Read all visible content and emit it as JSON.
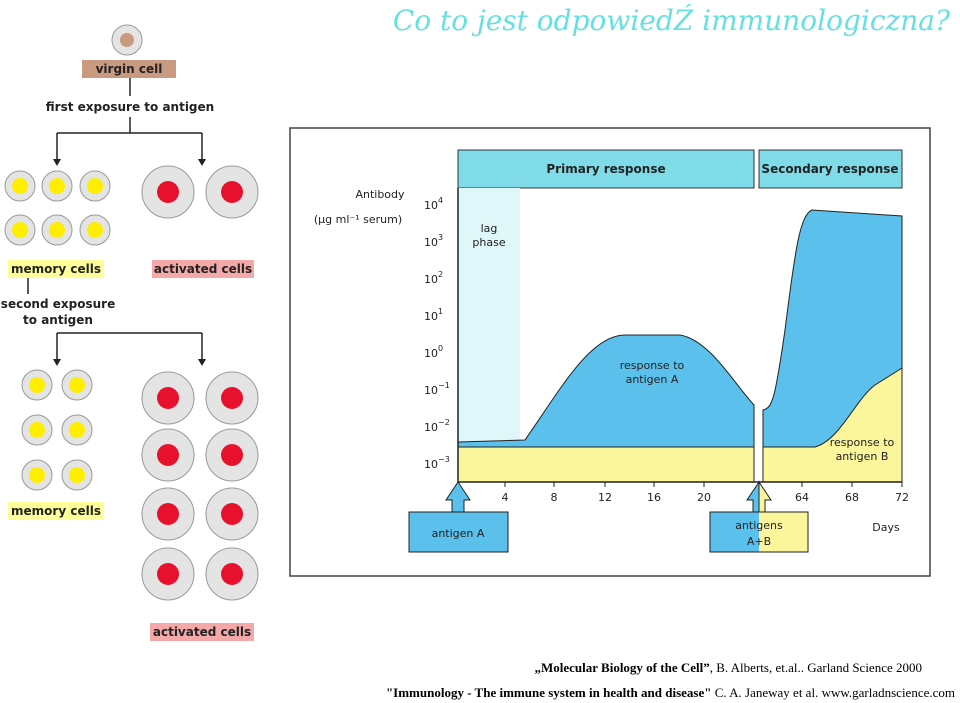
{
  "title": "Co to jest odpowiedŹ immunologiczna?",
  "cell_diagram": {
    "virgin_cell": "virgin cell",
    "first_exposure": "first exposure to antigen",
    "memory_cells_1": "memory cells",
    "activated_cells_1": "activated cells",
    "second_exposure": [
      "second exposure",
      "to antigen"
    ],
    "memory_cells_2": "memory cells",
    "activated_cells_2": "activated cells"
  },
  "graph": {
    "primary_header": "Primary response",
    "secondary_header": "Secondary response",
    "y_label": [
      "Antibody",
      "(µg ml⁻¹ serum)"
    ],
    "y_ticks": [
      {
        "base": "10",
        "exp": "4"
      },
      {
        "base": "10",
        "exp": "3"
      },
      {
        "base": "10",
        "exp": "2"
      },
      {
        "base": "10",
        "exp": "1"
      },
      {
        "base": "10",
        "exp": "0"
      },
      {
        "base": "10",
        "exp": "−1"
      },
      {
        "base": "10",
        "exp": "−2"
      },
      {
        "base": "10",
        "exp": "−3"
      }
    ],
    "lag_phase": [
      "lag",
      "phase"
    ],
    "response_a": [
      "response to",
      "antigen A"
    ],
    "response_b": [
      "response to",
      "antigen B"
    ],
    "x_ticks": [
      "4",
      "8",
      "12",
      "16",
      "20",
      "64",
      "68",
      "72"
    ],
    "x_label": "Days",
    "antigen_a": "antigen A",
    "antigens_ab": [
      "antigens",
      "A+B"
    ]
  },
  "references": [
    {
      "bold": "„Molecular Biology of the Cell”",
      "text": ", B. Alberts, et.al.. Garland Science 2000"
    },
    {
      "bold": "\"Immunology - The immune system in health and disease\"",
      "text": " C. A. Janeway et al. www.garladnscience.com"
    }
  ]
}
